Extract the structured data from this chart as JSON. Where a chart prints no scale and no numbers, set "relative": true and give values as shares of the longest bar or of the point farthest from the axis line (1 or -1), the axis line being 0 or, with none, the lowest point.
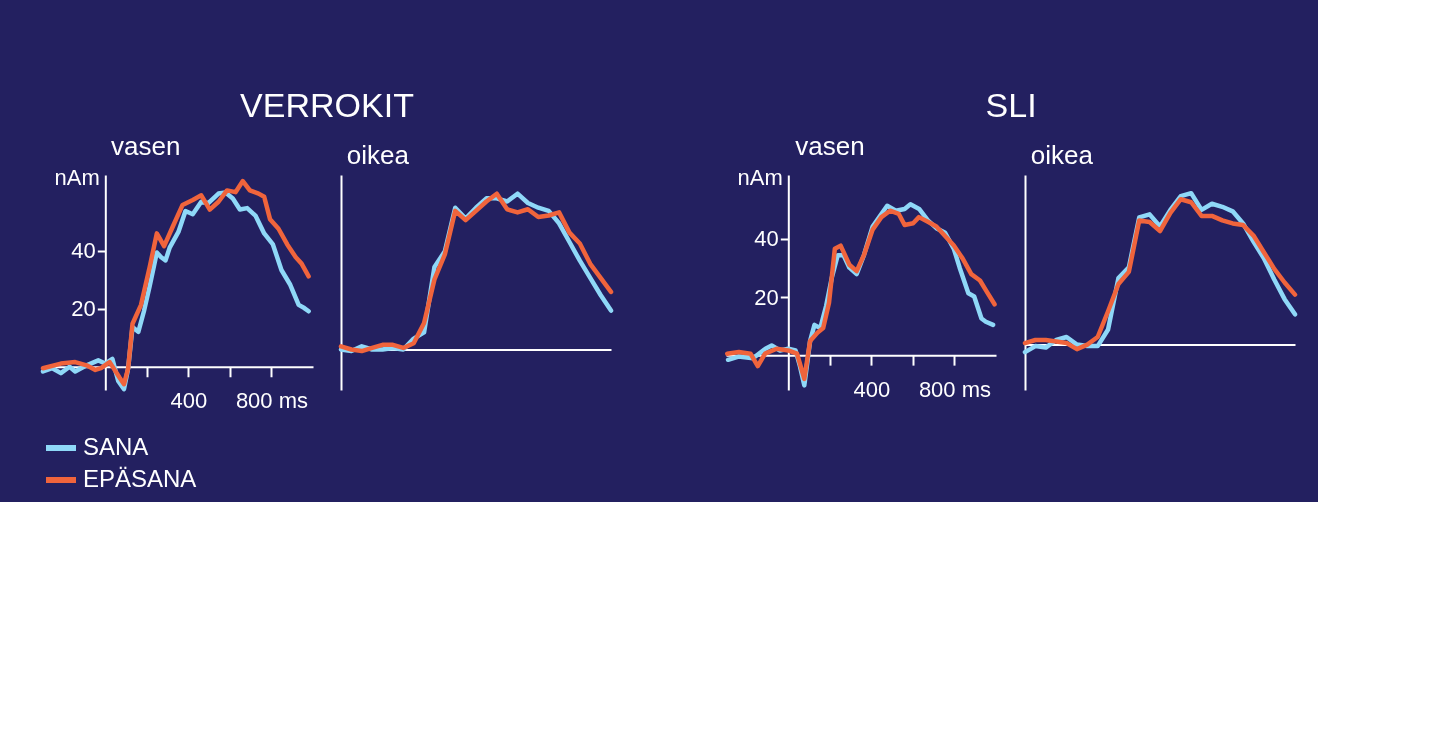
{
  "chart_data": [
    {
      "type": "line",
      "title": "VERROKIT",
      "subtitle": "vasen",
      "ylabel": "nAm",
      "xlim": [
        -300,
        1000
      ],
      "ylim": [
        -8,
        66
      ],
      "xticks": [
        {
          "value": 200,
          "label": null
        },
        400,
        {
          "value": 600,
          "label": null
        },
        {
          "value": 800,
          "label": "800 ms"
        }
      ],
      "yticks": [
        20,
        40
      ],
      "legend": "bottom",
      "series": [
        {
          "name": "SANA",
          "color": "#8fd8f8",
          "x": [
            -300,
            -255,
            -214,
            -172,
            -145,
            -90,
            -34,
            0,
            34,
            62,
            90,
            110,
            131,
            159,
            186,
            214,
            248,
            269,
            290,
            310,
            352,
            386,
            421,
            462,
            496,
            545,
            579,
            614,
            648,
            683,
            724,
            765,
            807,
            848,
            889,
            931,
            958,
            979
          ],
          "values": [
            -1.6,
            -0.5,
            -2.2,
            0,
            -1.6,
            0.5,
            2.2,
            1.1,
            2.7,
            -4.9,
            -7.7,
            -0.5,
            13.7,
            12.0,
            19.1,
            27.9,
            39.3,
            37.7,
            36.6,
            41.0,
            46.4,
            53.6,
            52.5,
            56.8,
            56.3,
            59.6,
            60.0,
            57.9,
            54.1,
            54.6,
            51.9,
            45.9,
            42.1,
            33.3,
            28.4,
            21.3,
            20.2,
            19.1
          ]
        },
        {
          "name": "EPÄSANA",
          "color": "#f0643c",
          "x": [
            -300,
            -214,
            -145,
            -90,
            -48,
            -21,
            21,
            69,
            90,
            110,
            131,
            172,
            214,
            248,
            283,
            324,
            372,
            421,
            462,
            503,
            545,
            586,
            627,
            662,
            696,
            738,
            765,
            793,
            834,
            876,
            917,
            945,
            979
          ],
          "values": [
            -0.5,
            1.1,
            1.6,
            0.5,
            -1.1,
            -0.5,
            1.6,
            -3.8,
            -6.0,
            -0.5,
            14.8,
            21.3,
            34.4,
            45.9,
            41.5,
            48.1,
            55.7,
            57.4,
            59.0,
            54.1,
            56.8,
            60.7,
            60.1,
            63.9,
            60.7,
            59.6,
            58.5,
            50.8,
            47.5,
            42.1,
            37.7,
            35.5,
            31.1
          ]
        }
      ]
    },
    {
      "type": "line",
      "subtitle": "oikea",
      "relative": true,
      "categories": [
        null,
        null,
        null,
        null,
        null,
        null,
        null,
        null,
        null,
        null,
        null,
        null,
        null,
        null,
        null,
        null,
        null,
        null,
        null,
        null,
        null,
        null,
        null,
        null,
        null,
        null,
        null
      ],
      "series": [
        {
          "color": "#8fd8f8",
          "values": [
            0,
            -0.01,
            0.02,
            0,
            0,
            0.01,
            0,
            0.07,
            0.11,
            0.53,
            0.63,
            0.91,
            0.84,
            0.91,
            0.97,
            0.97,
            0.95,
            1,
            0.94,
            0.91,
            0.89,
            0.81,
            0.69,
            0.57,
            0.46,
            0.35,
            0.25
          ]
        },
        {
          "color": "#f0643c",
          "values": [
            0.02,
            0,
            -0.01,
            0.01,
            0.03,
            0.03,
            0.01,
            0.04,
            0.17,
            0.45,
            0.61,
            0.89,
            0.83,
            0.89,
            0.95,
            1.0,
            0.9,
            0.88,
            0.9,
            0.85,
            0.86,
            0.88,
            0.75,
            0.68,
            0.55,
            0.46,
            0.37
          ]
        }
      ]
    },
    {
      "type": "line",
      "title": "SLI",
      "subtitle": "vasen",
      "ylabel": "nAm",
      "xlim": [
        -300,
        1000
      ],
      "ylim": [
        -12,
        62
      ],
      "xticks": [
        {
          "value": 200,
          "label": null
        },
        400,
        {
          "value": 600,
          "label": null
        },
        {
          "value": 800,
          "label": "800 ms"
        }
      ],
      "yticks": [
        20,
        40
      ],
      "series": [
        {
          "color": "#8fd8f8",
          "x": [
            -290,
            -240,
            -170,
            -110,
            -80,
            -40,
            0,
            35,
            56,
            77,
            105,
            126,
            154,
            182,
            210,
            238,
            266,
            294,
            329,
            364,
            406,
            448,
            476,
            518,
            560,
            588,
            630,
            672,
            713,
            755,
            797,
            825,
            867,
            895,
            930,
            951,
            986
          ],
          "values": [
            -1.6,
            -0.5,
            -1.1,
            2.2,
            3.3,
            1.6,
            2.2,
            1.6,
            -3.8,
            -10.4,
            4.9,
            10.4,
            9.3,
            16.9,
            26.8,
            34.4,
            34.4,
            30.1,
            27.9,
            34.4,
            44.3,
            48.6,
            51.4,
            49.7,
            50.3,
            51.9,
            50.3,
            46.4,
            43.7,
            42.1,
            36.6,
            30.1,
            21.3,
            20.2,
            12.6,
            11.5,
            10.4
          ]
        },
        {
          "color": "#f0643c",
          "x": [
            -294,
            -238,
            -182,
            -147,
            -112,
            -56,
            0,
            42,
            77,
            105,
            140,
            168,
            196,
            224,
            252,
            294,
            329,
            364,
            406,
            448,
            490,
            532,
            560,
            601,
            629,
            672,
            713,
            755,
            797,
            839,
            881,
            923,
            951,
            993
          ],
          "values": [
            0.5,
            1.1,
            0.5,
            -3.8,
            0.5,
            2.2,
            1.6,
            0.5,
            -8.2,
            4.9,
            7.7,
            9.3,
            18.0,
            36.6,
            37.7,
            31.1,
            28.9,
            34.4,
            43.2,
            47.5,
            49.7,
            48.6,
            44.8,
            45.4,
            47.5,
            45.9,
            44.3,
            41.0,
            37.7,
            33.3,
            27.9,
            25.7,
            22.4,
            17.5
          ]
        }
      ]
    },
    {
      "type": "line",
      "subtitle": "oikea",
      "relative": true,
      "categories": [
        null,
        null,
        null,
        null,
        null,
        null,
        null,
        null,
        null,
        null,
        null,
        null,
        null,
        null,
        null,
        null,
        null,
        null,
        null,
        null,
        null,
        null,
        null,
        null,
        null,
        null,
        null
      ],
      "series": [
        {
          "color": "#8fd8f8",
          "values": [
            -0.05,
            -0.01,
            -0.02,
            0.03,
            0.05,
            0,
            -0.01,
            -0.01,
            0.1,
            0.44,
            0.51,
            0.84,
            0.86,
            0.78,
            0.89,
            0.98,
            1,
            0.89,
            0.93,
            0.91,
            0.88,
            0.8,
            0.68,
            0.57,
            0.43,
            0.3,
            0.2
          ]
        },
        {
          "color": "#f0643c",
          "values": [
            0.01,
            0.03,
            0.03,
            0.02,
            0.01,
            -0.03,
            0,
            0.05,
            0.22,
            0.4,
            0.48,
            0.82,
            0.81,
            0.75,
            0.87,
            0.96,
            0.94,
            0.85,
            0.85,
            0.82,
            0.8,
            0.79,
            0.72,
            0.61,
            0.5,
            0.41,
            0.33
          ]
        }
      ]
    }
  ]
}
